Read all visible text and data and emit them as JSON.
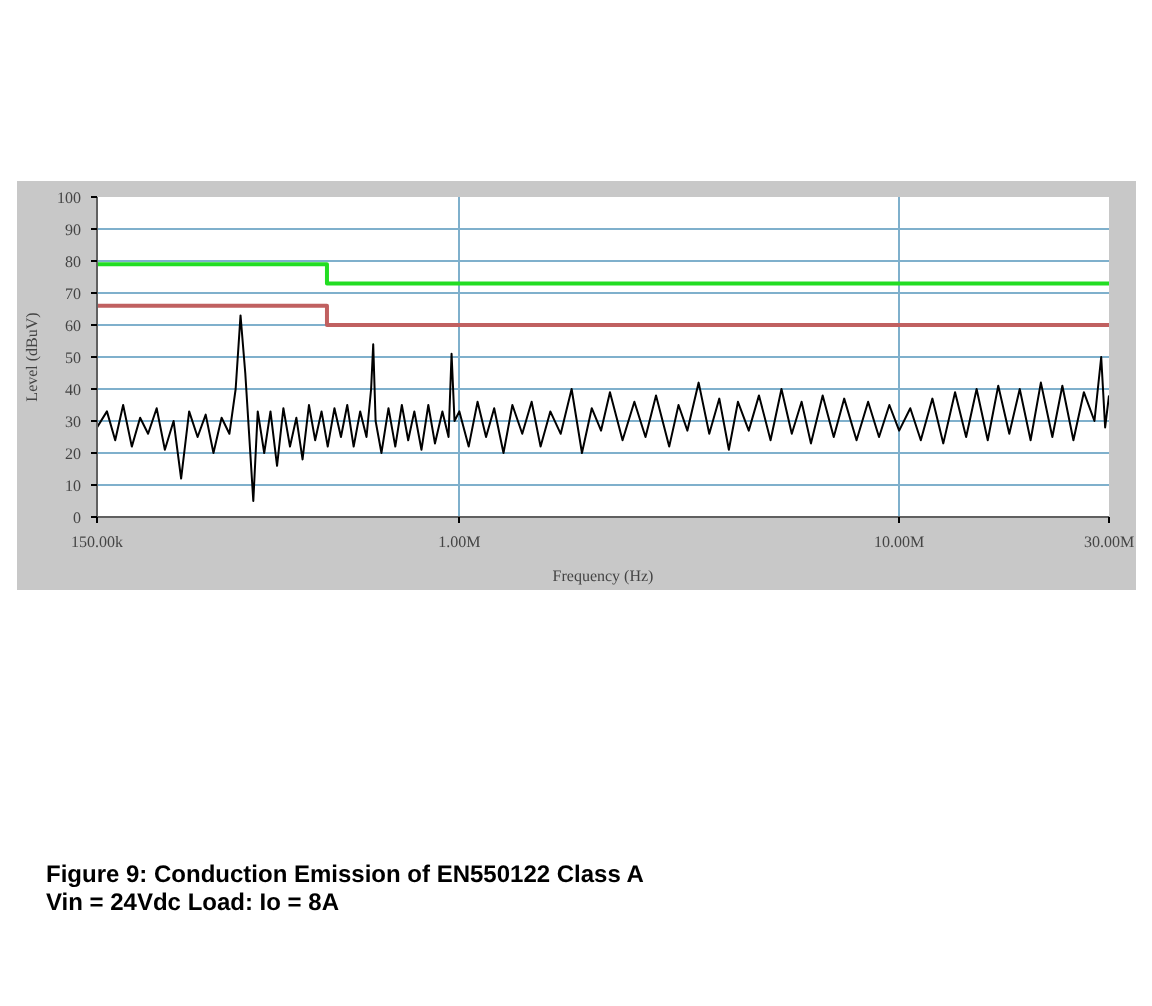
{
  "chart_data": {
    "type": "line",
    "title": "Figure 9: Conduction Emission of EN550122 Class A",
    "subtitle": "Vin = 24Vdc        Load: Io = 8A",
    "xlabel": "Frequency (Hz)",
    "ylabel": "Level (dBuV)",
    "log": "x",
    "grid": true,
    "xlim": [
      150000,
      30000000
    ],
    "xticks": [
      {
        "value": 150000,
        "label": "150.00k"
      },
      {
        "value": 1000000,
        "label": "1.00M"
      },
      {
        "value": 10000000,
        "label": "10.00M"
      },
      {
        "value": 30000000,
        "label": "30.00M"
      }
    ],
    "ylim": [
      0,
      100
    ],
    "yticks": [
      0,
      10,
      20,
      30,
      40,
      50,
      60,
      70,
      80,
      90,
      100
    ],
    "series": [
      {
        "color": "#22dd22",
        "x": [
          150000,
          500000,
          500000,
          30000000
        ],
        "values": [
          79,
          79,
          73,
          73
        ]
      },
      {
        "color": "#c06060",
        "x": [
          150000,
          500000,
          500000,
          30000000
        ],
        "values": [
          66,
          66,
          60,
          60
        ]
      },
      {
        "color": "#000000",
        "x": [
          150000,
          158000,
          165000,
          172000,
          180000,
          188000,
          196000,
          205000,
          214000,
          224000,
          233000,
          243000,
          254000,
          265000,
          276000,
          288000,
          300000,
          310000,
          318000,
          326000,
          334000,
          340000,
          348000,
          360000,
          372000,
          385000,
          398000,
          412000,
          426000,
          440000,
          455000,
          470000,
          486000,
          502000,
          520000,
          538000,
          556000,
          575000,
          595000,
          615000,
          630000,
          637000,
          645000,
          665000,
          690000,
          715000,
          740000,
          765000,
          790000,
          820000,
          850000,
          880000,
          915000,
          945000,
          960000,
          975000,
          1000000,
          1050000,
          1100000,
          1150000,
          1200000,
          1260000,
          1320000,
          1390000,
          1460000,
          1530000,
          1610000,
          1700000,
          1800000,
          1900000,
          2000000,
          2100000,
          2200000,
          2350000,
          2500000,
          2650000,
          2800000,
          3000000,
          3150000,
          3300000,
          3500000,
          3700000,
          3900000,
          4100000,
          4300000,
          4550000,
          4800000,
          5100000,
          5400000,
          5700000,
          6000000,
          6300000,
          6700000,
          7100000,
          7500000,
          8000000,
          8500000,
          9000000,
          9500000,
          10000000,
          10600000,
          11200000,
          11900000,
          12600000,
          13400000,
          14200000,
          15000000,
          15900000,
          16800000,
          17800000,
          18800000,
          19900000,
          21000000,
          22300000,
          23500000,
          24900000,
          26300000,
          27800000,
          28800000,
          29400000,
          30000000
        ],
        "values": [
          28,
          33,
          24,
          35,
          22,
          31,
          26,
          34,
          21,
          30,
          12,
          33,
          25,
          32,
          20,
          31,
          26,
          40,
          63,
          45,
          22,
          5,
          33,
          20,
          33,
          16,
          34,
          22,
          31,
          18,
          35,
          24,
          33,
          22,
          34,
          25,
          35,
          22,
          33,
          25,
          40,
          54,
          30,
          20,
          34,
          22,
          35,
          24,
          33,
          21,
          35,
          23,
          33,
          25,
          51,
          30,
          33,
          22,
          36,
          25,
          34,
          20,
          35,
          26,
          36,
          22,
          33,
          26,
          40,
          20,
          34,
          27,
          39,
          24,
          36,
          25,
          38,
          22,
          35,
          27,
          42,
          26,
          37,
          21,
          36,
          27,
          38,
          24,
          40,
          26,
          36,
          23,
          38,
          25,
          37,
          24,
          36,
          25,
          35,
          27,
          34,
          24,
          37,
          23,
          39,
          25,
          40,
          24,
          41,
          26,
          40,
          24,
          42,
          25,
          41,
          24,
          39,
          30,
          50,
          28,
          38
        ]
      }
    ]
  }
}
